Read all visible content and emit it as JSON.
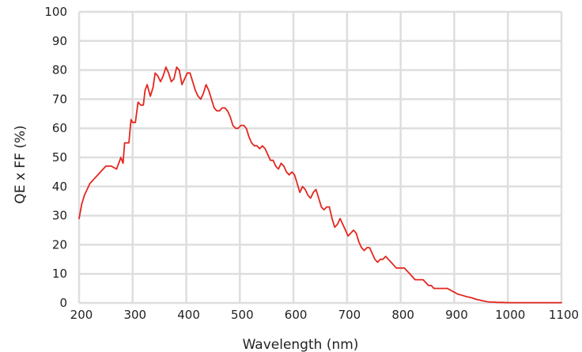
{
  "chart_data": {
    "type": "line",
    "title": "",
    "xlabel": "Wavelength (nm)",
    "ylabel": "QE x FF (%)",
    "xlim": [
      200,
      1100
    ],
    "ylim": [
      0,
      100
    ],
    "xticks": [
      200,
      300,
      400,
      500,
      600,
      700,
      800,
      900,
      1000,
      1100
    ],
    "yticks": [
      0,
      10,
      20,
      30,
      40,
      50,
      60,
      70,
      80,
      90,
      100
    ],
    "grid": true,
    "colors": {
      "line": "#e4261f",
      "grid": "#dedede",
      "text": "#222222"
    },
    "series": [
      {
        "name": "",
        "x": [
          200,
          205,
          210,
          220,
          230,
          240,
          250,
          255,
          260,
          270,
          278,
          282,
          285,
          290,
          293,
          297,
          300,
          305,
          310,
          315,
          320,
          323,
          327,
          333,
          338,
          342,
          347,
          352,
          357,
          362,
          367,
          372,
          377,
          382,
          387,
          392,
          397,
          402,
          407,
          412,
          417,
          422,
          427,
          432,
          437,
          442,
          447,
          452,
          457,
          462,
          467,
          472,
          477,
          482,
          487,
          492,
          497,
          502,
          507,
          512,
          517,
          522,
          527,
          532,
          537,
          542,
          547,
          552,
          557,
          562,
          567,
          572,
          577,
          582,
          587,
          592,
          597,
          602,
          607,
          612,
          617,
          622,
          627,
          632,
          637,
          642,
          647,
          652,
          657,
          662,
          667,
          672,
          677,
          682,
          687,
          692,
          697,
          702,
          707,
          712,
          717,
          722,
          727,
          732,
          737,
          742,
          747,
          752,
          757,
          762,
          767,
          772,
          777,
          782,
          787,
          792,
          797,
          802,
          807,
          812,
          817,
          822,
          827,
          832,
          837,
          842,
          847,
          852,
          857,
          862,
          867,
          872,
          877,
          882,
          887,
          892,
          897,
          902,
          907,
          912,
          917,
          922,
          927,
          932,
          937,
          942,
          947,
          952,
          957,
          962,
          967,
          972,
          980,
          990,
          1000,
          1010,
          1020,
          1030,
          1040,
          1050,
          1060,
          1070,
          1080,
          1090,
          1100
        ],
        "values": [
          29,
          34,
          37,
          41,
          43,
          45,
          47,
          47,
          47,
          46,
          50,
          48,
          55,
          55,
          55,
          63,
          62,
          62,
          69,
          68,
          68,
          73,
          75,
          71,
          74,
          79,
          78,
          76,
          78,
          81,
          79,
          76,
          77,
          81,
          80,
          75,
          77,
          79,
          79,
          76,
          73,
          71,
          70,
          72,
          75,
          73,
          70,
          67,
          66,
          66,
          67,
          67,
          66,
          64,
          61,
          60,
          60,
          61,
          61,
          60,
          57,
          55,
          54,
          54,
          53,
          54,
          53,
          51,
          49,
          49,
          47,
          46,
          48,
          47,
          45,
          44,
          45,
          44,
          41,
          38,
          40,
          39,
          37,
          36,
          38,
          39,
          36,
          33,
          32,
          33,
          33,
          29,
          26,
          27,
          29,
          27,
          25,
          23,
          24,
          25,
          24,
          21,
          19,
          18,
          19,
          19,
          17,
          15,
          14,
          15,
          15,
          16,
          15,
          14,
          13,
          12,
          12,
          12,
          12,
          11,
          10,
          9,
          8,
          8,
          8,
          8,
          7,
          6,
          6,
          5,
          5,
          5,
          5,
          5,
          5,
          4.5,
          4,
          3.5,
          3,
          2.8,
          2.5,
          2.2,
          2,
          1.8,
          1.5,
          1.2,
          1,
          0.8,
          0.6,
          0.4,
          0.3,
          0.3,
          0.2,
          0.2,
          0.1,
          0.1,
          0.1,
          0.1,
          0.1,
          0.1,
          0.1,
          0.1,
          0.1,
          0.1,
          0.1
        ]
      }
    ]
  }
}
